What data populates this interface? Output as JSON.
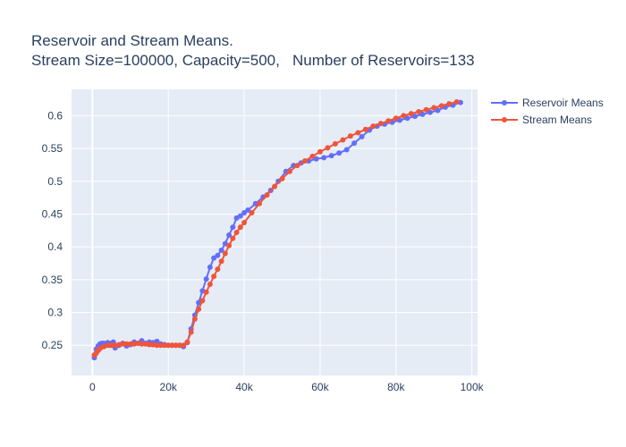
{
  "chart_data": {
    "type": "line",
    "title": "Reservoir and Stream Means.",
    "subtitle": "Stream Size=100000, Capacity=500,   Number of Reservoirs=133",
    "xlabel": "",
    "ylabel": "",
    "xlim": [
      -5500,
      101500
    ],
    "ylim": [
      0.204,
      0.64
    ],
    "x_ticks": [
      0,
      20000,
      40000,
      60000,
      80000,
      100000
    ],
    "x_tick_labels": [
      "0",
      "20k",
      "40k",
      "60k",
      "80k",
      "100k"
    ],
    "y_ticks": [
      0.25,
      0.3,
      0.35,
      0.4,
      0.45,
      0.5,
      0.55,
      0.6
    ],
    "y_tick_labels": [
      "0.25",
      "0.3",
      "0.35",
      "0.4",
      "0.45",
      "0.5",
      "0.55",
      "0.6"
    ],
    "grid": true,
    "legend_position": "top-right",
    "series": [
      {
        "name": "Reservoir Means",
        "color": "#636efa",
        "x": [
          500,
          700,
          1000,
          1500,
          2000,
          2500,
          3000,
          3500,
          4000,
          4500,
          5000,
          5500,
          6000,
          7000,
          8000,
          9000,
          10000,
          11000,
          12000,
          13000,
          14000,
          15000,
          16000,
          17000,
          18000,
          19000,
          20000,
          21000,
          22000,
          23000,
          24000,
          25000,
          26000,
          27000,
          28000,
          29000,
          30000,
          31000,
          32000,
          33000,
          34000,
          35000,
          36000,
          37000,
          38000,
          39000,
          40000,
          41000,
          43000,
          45000,
          47000,
          49000,
          51000,
          53000,
          55000,
          57000,
          59000,
          61000,
          63000,
          65000,
          67000,
          69000,
          71000,
          73000,
          75000,
          77000,
          79000,
          81000,
          83000,
          85000,
          87000,
          89000,
          91000,
          93000,
          95000,
          97000
        ],
        "y": [
          0.231,
          0.236,
          0.244,
          0.249,
          0.252,
          0.253,
          0.253,
          0.252,
          0.254,
          0.25,
          0.253,
          0.255,
          0.246,
          0.25,
          0.253,
          0.249,
          0.251,
          0.255,
          0.253,
          0.257,
          0.253,
          0.255,
          0.254,
          0.256,
          0.252,
          0.251,
          0.25,
          0.25,
          0.25,
          0.25,
          0.248,
          0.254,
          0.275,
          0.296,
          0.315,
          0.333,
          0.351,
          0.369,
          0.383,
          0.387,
          0.395,
          0.405,
          0.418,
          0.43,
          0.444,
          0.447,
          0.452,
          0.456,
          0.466,
          0.476,
          0.486,
          0.5,
          0.515,
          0.524,
          0.528,
          0.531,
          0.534,
          0.536,
          0.539,
          0.543,
          0.548,
          0.558,
          0.568,
          0.578,
          0.584,
          0.587,
          0.59,
          0.593,
          0.596,
          0.599,
          0.602,
          0.605,
          0.608,
          0.613,
          0.616,
          0.62
        ]
      },
      {
        "name": "Stream Means",
        "color": "#ef553b",
        "x": [
          500,
          1000,
          1500,
          2000,
          3000,
          4000,
          5000,
          6000,
          7000,
          8000,
          9000,
          10000,
          11000,
          12000,
          13000,
          14000,
          15000,
          16000,
          17000,
          18000,
          19000,
          20000,
          21000,
          22000,
          23000,
          24000,
          25000,
          26000,
          27000,
          28000,
          29000,
          30000,
          31000,
          32000,
          33000,
          34000,
          35000,
          36000,
          37000,
          38000,
          39000,
          40000,
          42000,
          44000,
          46000,
          48000,
          50000,
          52000,
          54000,
          56000,
          58000,
          60000,
          62000,
          64000,
          66000,
          68000,
          70000,
          72000,
          74000,
          76000,
          78000,
          80000,
          82000,
          84000,
          86000,
          88000,
          90000,
          92000,
          94000,
          96000
        ],
        "y": [
          0.235,
          0.238,
          0.242,
          0.245,
          0.248,
          0.25,
          0.25,
          0.25,
          0.251,
          0.252,
          0.252,
          0.252,
          0.252,
          0.253,
          0.252,
          0.252,
          0.251,
          0.251,
          0.25,
          0.25,
          0.25,
          0.25,
          0.25,
          0.25,
          0.25,
          0.25,
          0.255,
          0.27,
          0.29,
          0.305,
          0.318,
          0.331,
          0.343,
          0.355,
          0.366,
          0.378,
          0.39,
          0.402,
          0.413,
          0.422,
          0.43,
          0.437,
          0.452,
          0.466,
          0.479,
          0.492,
          0.504,
          0.515,
          0.524,
          0.531,
          0.538,
          0.545,
          0.551,
          0.557,
          0.563,
          0.569,
          0.574,
          0.579,
          0.584,
          0.588,
          0.592,
          0.596,
          0.6,
          0.603,
          0.606,
          0.609,
          0.612,
          0.615,
          0.618,
          0.621
        ]
      }
    ]
  }
}
